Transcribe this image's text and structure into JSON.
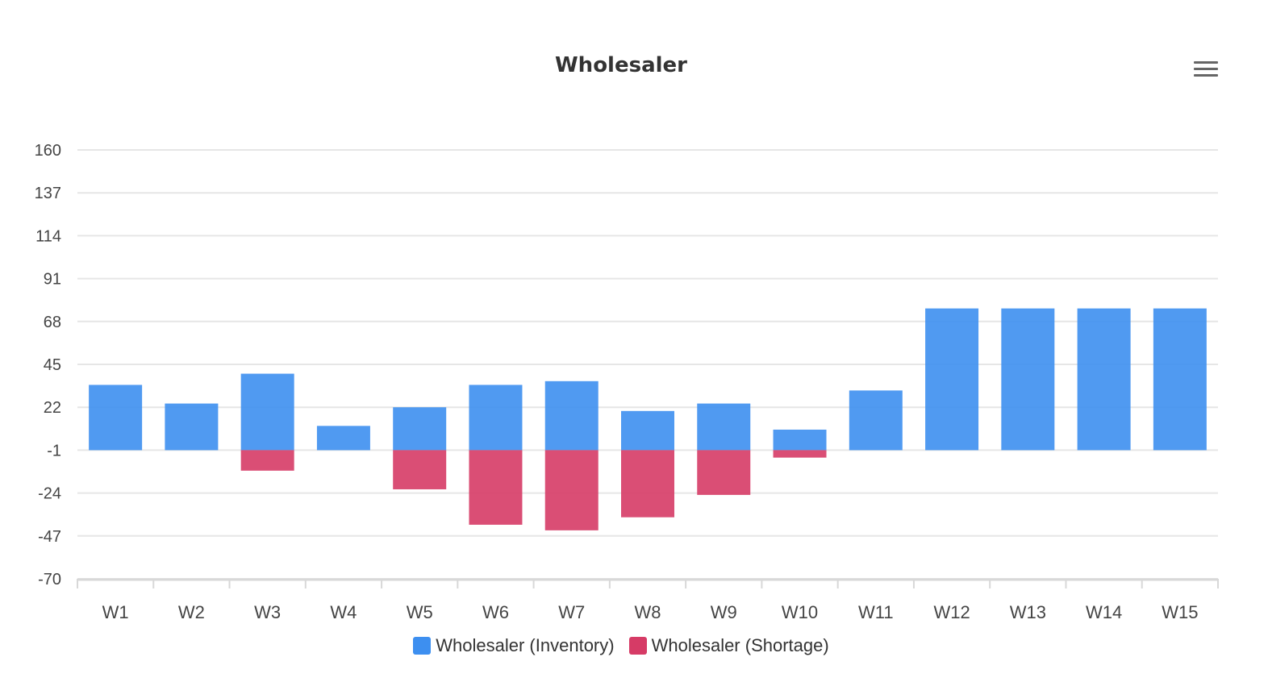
{
  "chart": {
    "title": "Wholesaler",
    "menu_icon": "hamburger-menu-icon"
  },
  "chart_data": {
    "type": "bar",
    "title": "Wholesaler",
    "xlabel": "",
    "ylabel": "",
    "categories": [
      "W1",
      "W2",
      "W3",
      "W4",
      "W5",
      "W6",
      "W7",
      "W8",
      "W9",
      "W10",
      "W11",
      "W12",
      "W13",
      "W14",
      "W15"
    ],
    "y_ticks": [
      160,
      137,
      114,
      91,
      68,
      45,
      22,
      -1,
      -24,
      -47,
      -70
    ],
    "ylim": [
      -70,
      160
    ],
    "baseline": -1,
    "grid": true,
    "legend_position": "bottom-center",
    "series": [
      {
        "name": "Wholesaler (Inventory)",
        "color": "#3d8ff0",
        "values": [
          35,
          25,
          41,
          13,
          23,
          35,
          37,
          21,
          25,
          11,
          32,
          76,
          76,
          76,
          76
        ]
      },
      {
        "name": "Wholesaler (Shortage)",
        "color": "#d63b66",
        "values": [
          0,
          0,
          -11,
          0,
          -21,
          -40,
          -43,
          -36,
          -24,
          -4,
          0,
          0,
          0,
          0,
          0
        ]
      }
    ]
  }
}
